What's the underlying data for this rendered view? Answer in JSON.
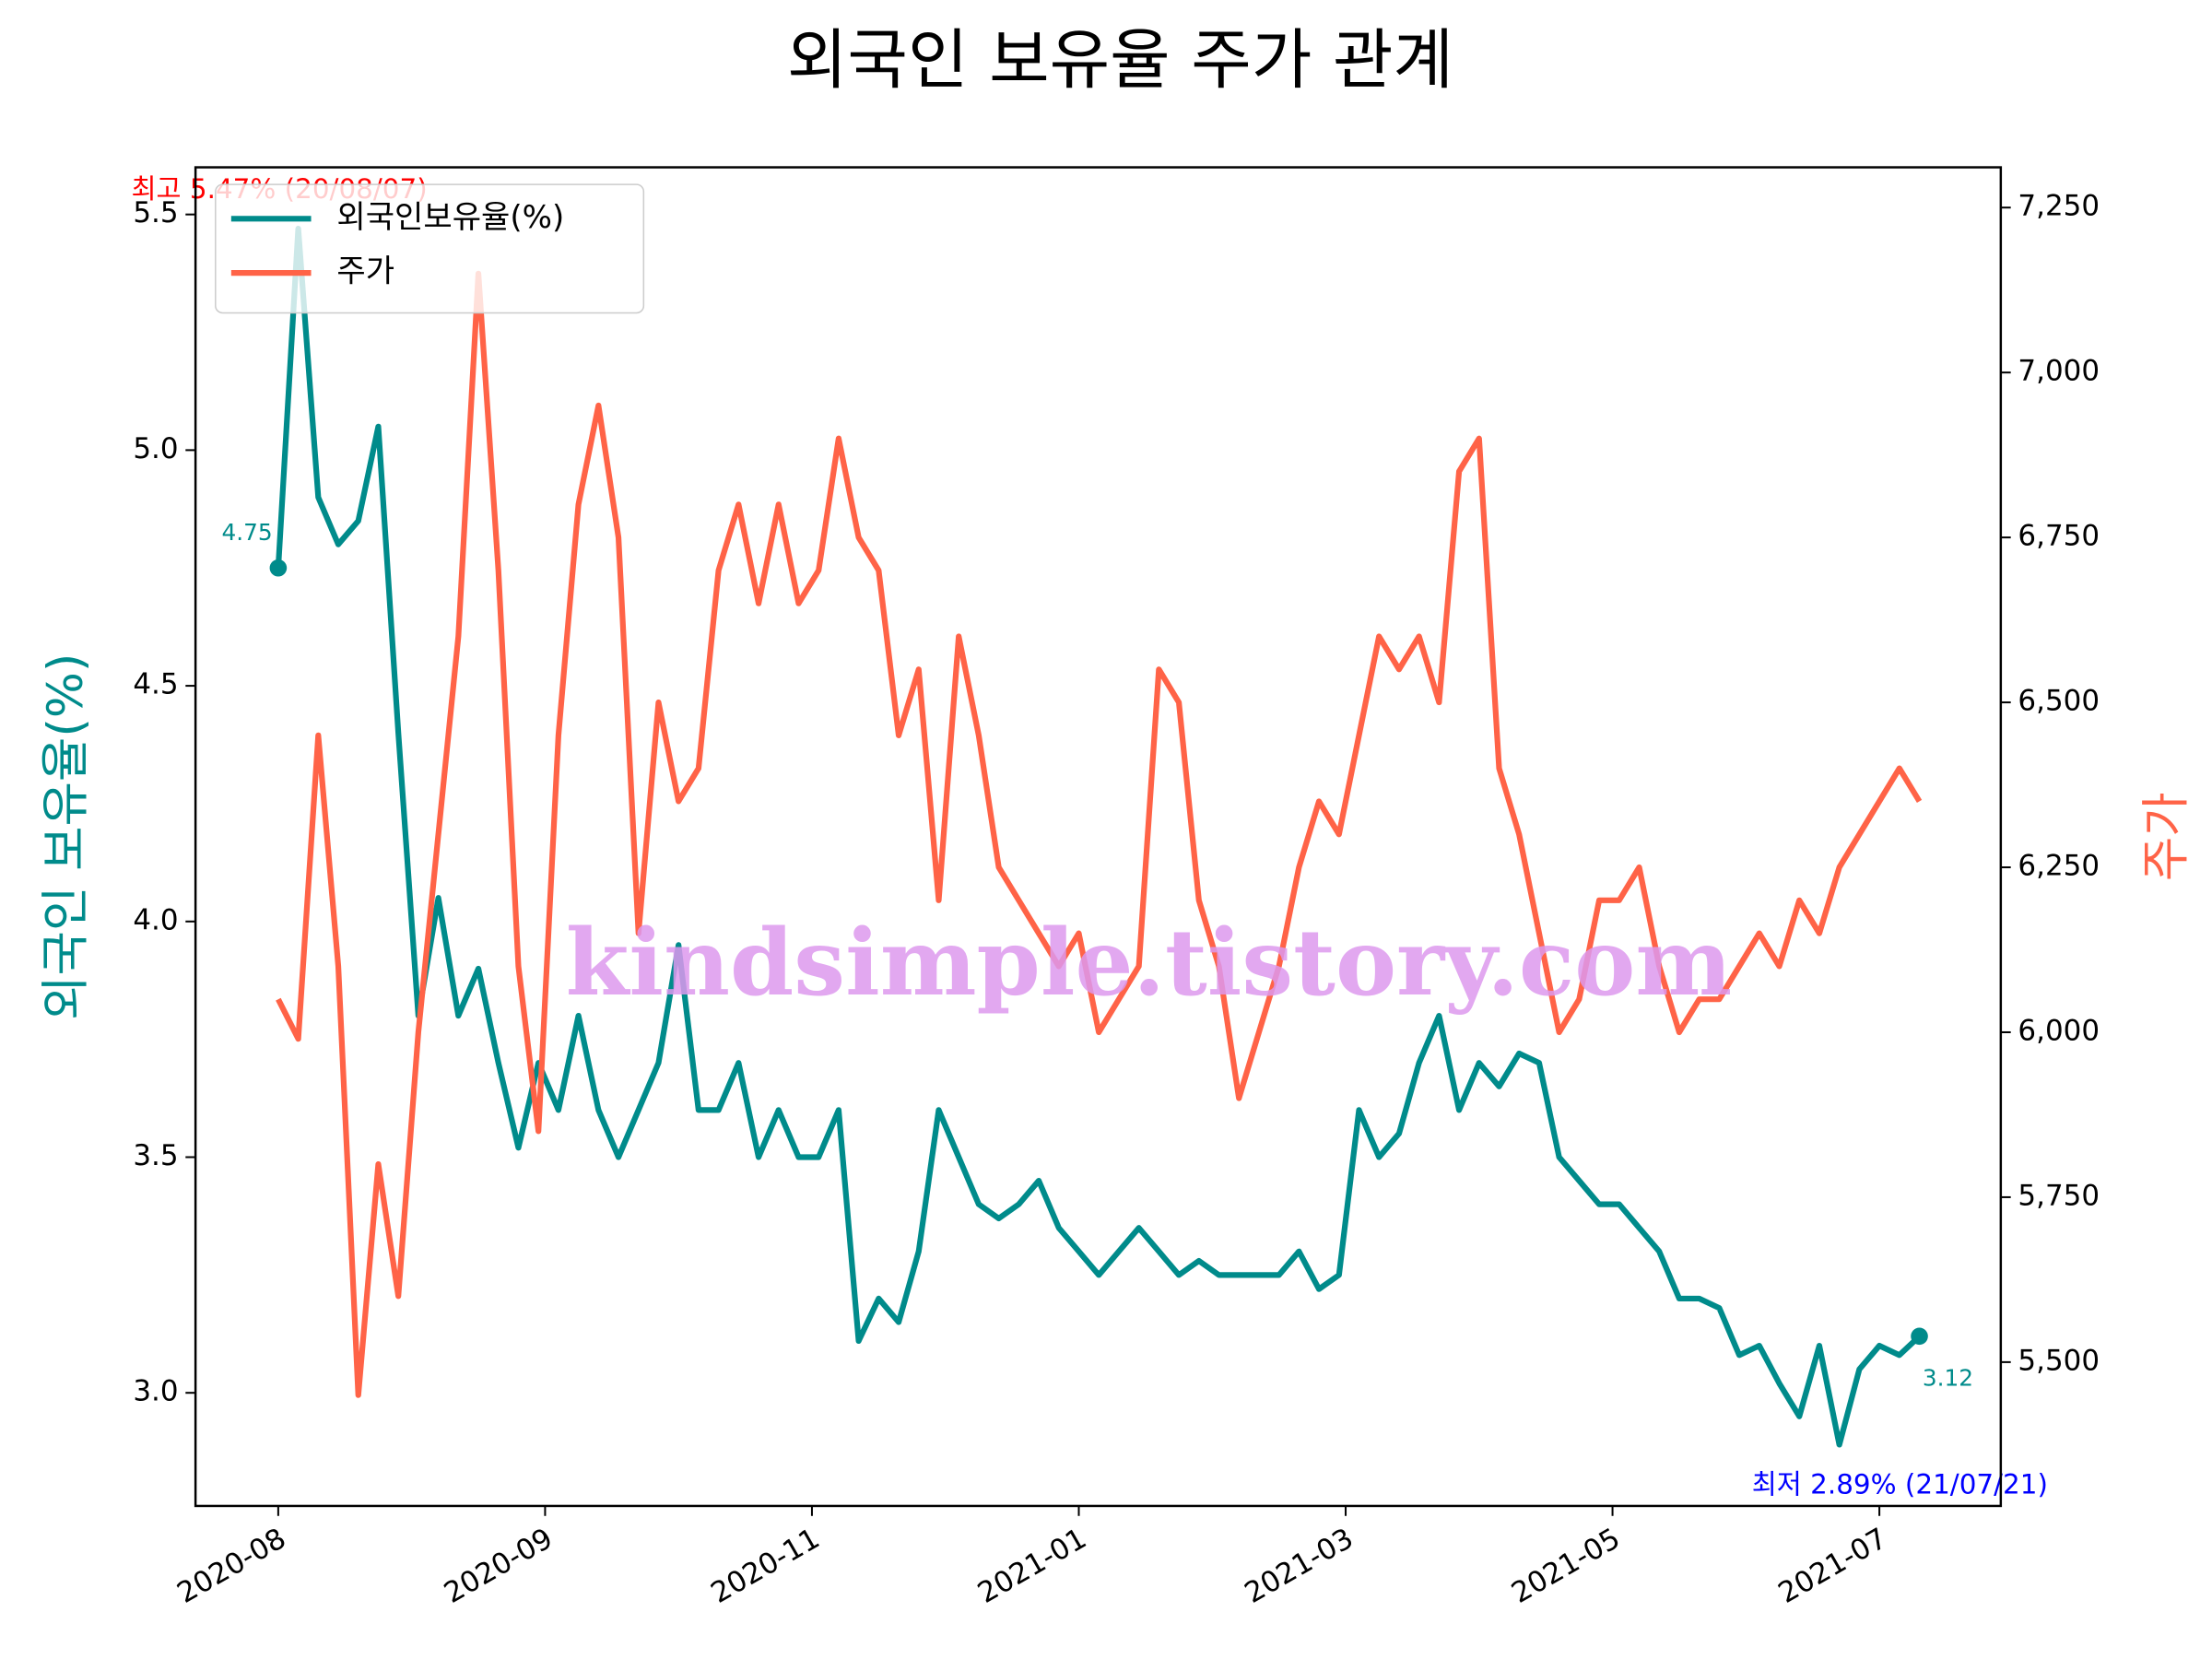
{
  "chart_data": {
    "type": "line",
    "title": "외국인 보유율 주가 관계",
    "y_label": "외국인 보유율(%)",
    "y2_label": "주가",
    "watermark": "kindsimple.tistory.com",
    "legend": "upper left",
    "x": [
      0,
      3,
      6,
      9,
      12,
      15,
      18,
      21,
      24,
      27,
      30,
      33,
      36,
      39,
      42,
      45,
      48,
      51,
      54,
      57,
      60,
      63,
      66,
      69,
      72,
      75,
      78,
      81,
      84,
      87,
      90,
      93,
      96,
      99,
      102,
      105,
      108,
      111,
      114,
      117,
      120,
      123,
      126,
      129,
      132,
      135,
      138,
      141,
      144,
      147,
      150,
      153,
      156,
      159,
      162,
      165,
      168,
      171,
      174,
      177,
      180,
      183,
      186,
      189,
      192,
      195,
      198,
      201,
      204,
      207,
      210,
      213,
      216,
      219,
      222,
      225,
      228,
      231,
      234,
      237,
      240,
      243,
      246
    ],
    "xlim": [
      -12.4,
      258.2
    ],
    "xticks": [
      {
        "value": 0,
        "label": "2020-08"
      },
      {
        "value": 40,
        "label": "2020-09"
      },
      {
        "value": 80,
        "label": "2020-11"
      },
      {
        "value": 120,
        "label": "2021-01"
      },
      {
        "value": 160,
        "label": "2021-03"
      },
      {
        "value": 200,
        "label": "2021-05"
      },
      {
        "value": 240,
        "label": "2021-07"
      }
    ],
    "ylim": [
      2.76,
      5.6
    ],
    "yticks": [
      {
        "value": 3,
        "label": "3.0"
      },
      3.5,
      {
        "value": 4,
        "label": "4.0"
      },
      4.5,
      {
        "value": 5,
        "label": "5.0"
      },
      5.5
    ],
    "y2lim": [
      5282,
      7311
    ],
    "y2ticks": [
      {
        "value": 5500,
        "label": "5,500"
      },
      {
        "value": 5750,
        "label": "5,750"
      },
      {
        "value": 6000,
        "label": "6,000"
      },
      {
        "value": 6250,
        "label": "6,250"
      },
      {
        "value": 6500,
        "label": "6,500"
      },
      {
        "value": 6750,
        "label": "6,750"
      },
      {
        "value": 7000,
        "label": "7,000"
      },
      {
        "value": 7250,
        "label": "7,250"
      }
    ],
    "series": [
      {
        "name": "외국인보유율(%)",
        "color": "#008b8b",
        "axis": "y",
        "values": [
          4.75,
          5.47,
          4.9,
          4.8,
          4.85,
          5.05,
          4.4,
          3.8,
          4.05,
          3.8,
          3.9,
          3.7,
          3.52,
          3.7,
          3.6,
          3.8,
          3.6,
          3.5,
          3.6,
          3.7,
          3.95,
          3.6,
          3.6,
          3.7,
          3.5,
          3.6,
          3.5,
          3.5,
          3.6,
          3.11,
          3.2,
          3.15,
          3.3,
          3.6,
          3.5,
          3.4,
          3.37,
          3.4,
          3.45,
          3.35,
          3.3,
          3.25,
          3.3,
          3.35,
          3.3,
          3.25,
          3.28,
          3.25,
          3.25,
          3.25,
          3.25,
          3.3,
          3.22,
          3.25,
          3.6,
          3.5,
          3.55,
          3.7,
          3.8,
          3.6,
          3.7,
          3.65,
          3.72,
          3.7,
          3.5,
          3.45,
          3.4,
          3.4,
          3.35,
          3.3,
          3.2,
          3.2,
          3.18,
          3.08,
          3.1,
          3.02,
          2.95,
          3.1,
          2.89,
          3.05,
          3.1,
          3.08,
          3.12
        ]
      },
      {
        "name": "주가",
        "color": "#ff6347",
        "axis": "y2",
        "values": [
          6050,
          5990,
          6450,
          6100,
          5450,
          5800,
          5600,
          6000,
          6300,
          6600,
          7150,
          6700,
          6100,
          5850,
          6450,
          6800,
          6950,
          6750,
          6150,
          6500,
          6350,
          6400,
          6700,
          6800,
          6650,
          6800,
          6650,
          6700,
          6900,
          6750,
          6700,
          6450,
          6550,
          6200,
          6600,
          6450,
          6250,
          6200,
          6150,
          6100,
          6150,
          6000,
          6050,
          6100,
          6550,
          6500,
          6200,
          6100,
          5900,
          6000,
          6100,
          6250,
          6350,
          6300,
          6450,
          6600,
          6550,
          6600,
          6500,
          6850,
          6900,
          6400,
          6300,
          6150,
          6000,
          6050,
          6200,
          6200,
          6250,
          6100,
          6000,
          6050,
          6050,
          6100,
          6150,
          6100,
          6200,
          6150,
          6250,
          6300,
          6350,
          6400,
          6350
        ]
      }
    ],
    "annotations": {
      "start": "4.75",
      "end": "3.12",
      "max": "최고 5.47% (20/08/07)",
      "min": "최저 2.89% (21/07/21)"
    }
  }
}
